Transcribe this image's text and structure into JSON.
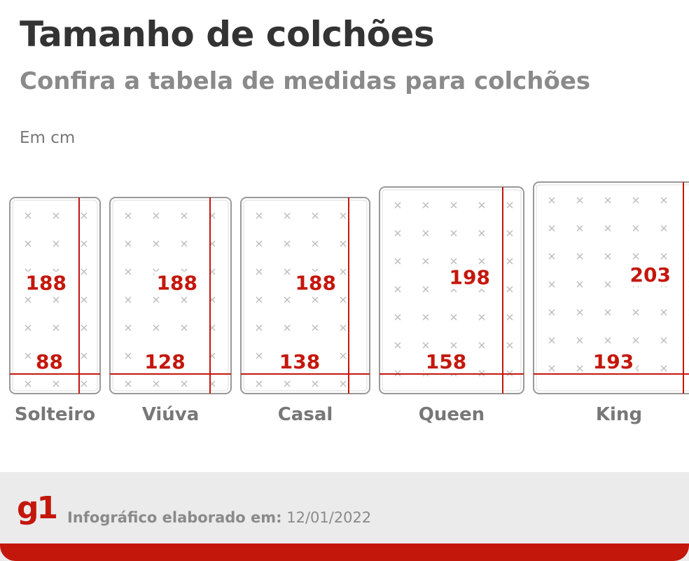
{
  "header": {
    "title": "Tamanho de colchões",
    "subtitle": "Confira a tabela de medidas para colchões",
    "unit": "Em cm"
  },
  "mattresses": [
    {
      "name": "Solteiro",
      "width": 88,
      "length": 188
    },
    {
      "name": "Viúva",
      "width": 128,
      "length": 188
    },
    {
      "name": "Casal",
      "width": 138,
      "length": 188
    },
    {
      "name": "Queen",
      "width": 158,
      "length": 198
    },
    {
      "name": "King",
      "width": 193,
      "length": 203
    }
  ],
  "colors": {
    "accent": "#c4170c",
    "outline": "#999999",
    "label": "#777777",
    "stitch": "#bbbbbb"
  },
  "footer": {
    "logo": "g1",
    "credit_label": "Infográfico elaborado em:",
    "credit_date": "12/01/2022"
  }
}
